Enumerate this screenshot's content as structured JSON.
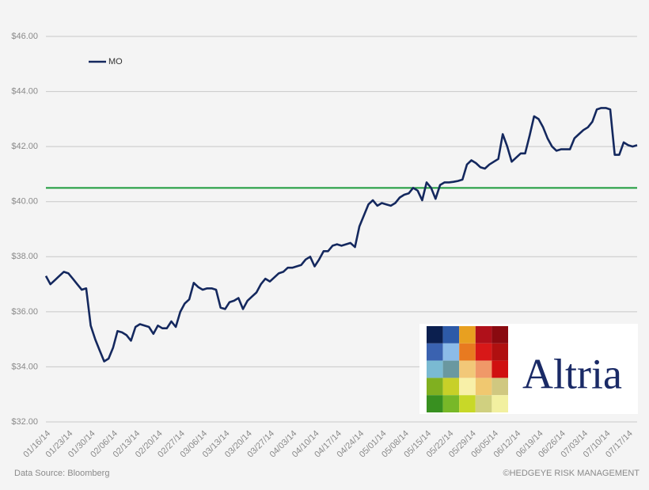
{
  "chart_data": {
    "type": "line",
    "categories": [
      "01/16/14",
      null,
      null,
      null,
      null,
      "01/23/14",
      null,
      null,
      null,
      null,
      "01/30/14",
      null,
      null,
      null,
      null,
      "02/06/14",
      null,
      null,
      null,
      null,
      "02/13/14",
      null,
      null,
      null,
      null,
      "02/20/14",
      null,
      null,
      null,
      null,
      "02/27/14",
      null,
      null,
      null,
      null,
      "03/06/14",
      null,
      null,
      null,
      null,
      "03/13/14",
      null,
      null,
      null,
      null,
      "03/20/14",
      null,
      null,
      null,
      null,
      "03/27/14",
      null,
      null,
      null,
      null,
      "04/03/14",
      null,
      null,
      null,
      null,
      "04/10/14",
      null,
      null,
      null,
      null,
      "04/17/14",
      null,
      null,
      null,
      null,
      "04/24/14",
      null,
      null,
      null,
      null,
      "05/01/14",
      null,
      null,
      null,
      null,
      "05/08/14",
      null,
      null,
      null,
      null,
      "05/15/14",
      null,
      null,
      null,
      null,
      "05/22/14",
      null,
      null,
      null,
      null,
      "05/29/14",
      null,
      null,
      null,
      null,
      "06/05/14",
      null,
      null,
      null,
      null,
      "06/12/14",
      null,
      null,
      null,
      null,
      "06/19/14",
      null,
      null,
      null,
      null,
      "06/26/14",
      null,
      null,
      null,
      null,
      "07/03/14",
      null,
      null,
      null,
      null,
      "07/10/14",
      null,
      null,
      null,
      null,
      "07/17/14",
      null,
      null
    ],
    "series": [
      {
        "name": "MO",
        "color": "#14285e",
        "values": [
          37.3,
          37.0,
          37.15,
          37.3,
          37.45,
          37.4,
          37.2,
          37.0,
          36.8,
          36.85,
          35.5,
          35.0,
          34.6,
          34.2,
          34.3,
          34.7,
          35.3,
          35.25,
          35.15,
          34.95,
          35.45,
          35.55,
          35.5,
          35.45,
          35.2,
          35.5,
          35.4,
          35.4,
          35.65,
          35.45,
          36.0,
          36.3,
          36.45,
          37.05,
          36.9,
          36.8,
          36.85,
          36.85,
          36.8,
          36.15,
          36.1,
          36.35,
          36.4,
          36.5,
          36.1,
          36.4,
          36.55,
          36.7,
          37.0,
          37.2,
          37.1,
          37.25,
          37.4,
          37.45,
          37.6,
          37.6,
          37.65,
          37.7,
          37.9,
          38.0,
          37.65,
          37.9,
          38.2,
          38.2,
          38.4,
          38.45,
          38.4,
          38.45,
          38.5,
          38.35,
          39.1,
          39.5,
          39.9,
          40.05,
          39.85,
          39.95,
          39.9,
          39.85,
          39.95,
          40.15,
          40.25,
          40.3,
          40.5,
          40.4,
          40.05,
          40.7,
          40.5,
          40.1,
          40.6,
          40.7,
          40.7,
          40.72,
          40.75,
          40.8,
          41.35,
          41.5,
          41.4,
          41.25,
          41.2,
          41.35,
          41.45,
          41.55,
          42.45,
          42.0,
          41.45,
          41.6,
          41.75,
          41.75,
          42.4,
          43.1,
          43.0,
          42.7,
          42.3,
          42.0,
          41.85,
          41.9,
          41.9,
          41.9,
          42.3,
          42.45,
          42.6,
          42.7,
          42.9,
          43.35,
          43.4,
          43.4,
          43.35,
          41.7,
          41.7,
          42.15,
          42.05,
          42.0,
          42.05
        ]
      }
    ],
    "reference_line": {
      "value": 40.5,
      "color": "#1a9a3a"
    },
    "ylim": [
      32,
      46
    ],
    "yticks": [
      {
        "value": 32,
        "label": "$32.00"
      },
      {
        "value": 34,
        "label": "$34.00"
      },
      {
        "value": 36,
        "label": "$36.00"
      },
      {
        "value": 38,
        "label": "$38.00"
      },
      {
        "value": 40,
        "label": "$40.00"
      },
      {
        "value": 42,
        "label": "$42.00"
      },
      {
        "value": 44,
        "label": "$44.00"
      },
      {
        "value": 46,
        "label": "$46.00"
      }
    ],
    "grid": true,
    "legend": "top-left",
    "source": "Data Source: Bloomberg",
    "credit": "©HEDGEYE RISK MANAGEMENT"
  },
  "logo": "Altria"
}
